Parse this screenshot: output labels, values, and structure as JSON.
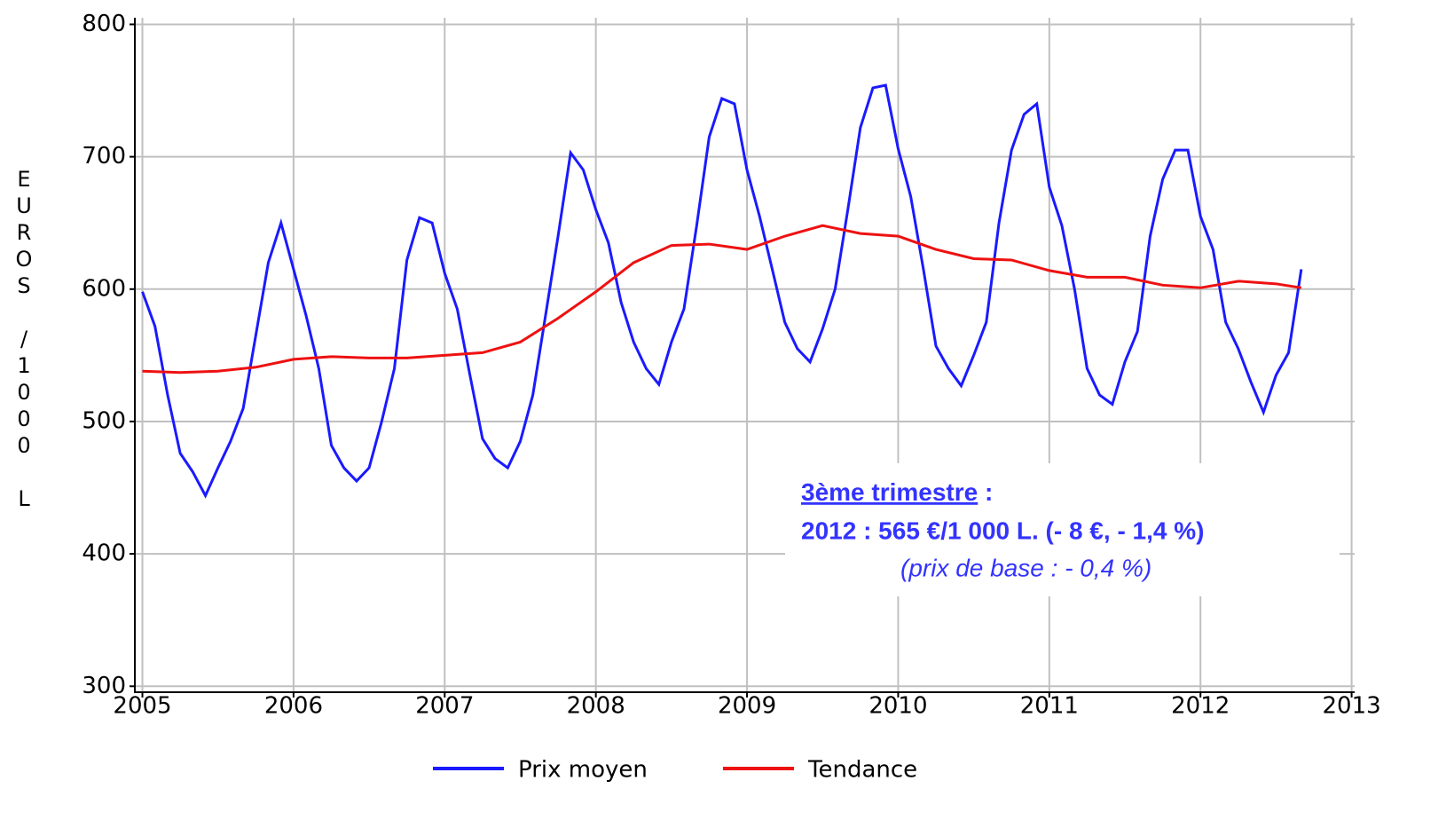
{
  "chart_data": {
    "type": "line",
    "y_label": "EUROS /1000 L",
    "xlim": [
      2004.95,
      2013.02
    ],
    "ylim": [
      295.5,
      805
    ],
    "xticks": [
      2005,
      2006,
      2007,
      2008,
      2009,
      2010,
      2011,
      2012,
      2013
    ],
    "yticks": [
      300,
      400,
      500,
      600,
      700,
      800
    ],
    "grid": true,
    "legend": "bottom",
    "annotation": {
      "heading": "3ème trimestre",
      "heading_suffix": " :",
      "line1": "2012 : 565 €/1 000 L. (- 8 €, - 1,4 %)",
      "line2": "(prix de base : - 0,4 %)",
      "color": "#3333ff"
    },
    "series": [
      {
        "name": "Prix moyen",
        "color": "#1a1aff",
        "x": [
          2005,
          2005.083,
          2005.167,
          2005.25,
          2005.333,
          2005.417,
          2005.5,
          2005.583,
          2005.667,
          2005.75,
          2005.833,
          2005.917,
          2006,
          2006.083,
          2006.167,
          2006.25,
          2006.333,
          2006.417,
          2006.5,
          2006.583,
          2006.667,
          2006.75,
          2006.833,
          2006.917,
          2007,
          2007.083,
          2007.167,
          2007.25,
          2007.333,
          2007.417,
          2007.5,
          2007.583,
          2007.667,
          2007.75,
          2007.833,
          2007.917,
          2008,
          2008.083,
          2008.167,
          2008.25,
          2008.333,
          2008.417,
          2008.5,
          2008.583,
          2008.667,
          2008.75,
          2008.833,
          2008.917,
          2009,
          2009.083,
          2009.167,
          2009.25,
          2009.333,
          2009.417,
          2009.5,
          2009.583,
          2009.667,
          2009.75,
          2009.833,
          2009.917,
          2010,
          2010.083,
          2010.167,
          2010.25,
          2010.333,
          2010.417,
          2010.5,
          2010.583,
          2010.667,
          2010.75,
          2010.833,
          2010.917,
          2011,
          2011.083,
          2011.167,
          2011.25,
          2011.333,
          2011.417,
          2011.5,
          2011.583,
          2011.667,
          2011.75,
          2011.833,
          2011.917,
          2012,
          2012.083,
          2012.167,
          2012.25,
          2012.333,
          2012.417,
          2012.5,
          2012.583,
          2012.667
        ],
        "values": [
          598,
          572,
          520,
          476,
          462,
          444,
          465,
          485,
          510,
          565,
          620,
          650,
          615,
          580,
          540,
          482,
          465,
          455,
          465,
          500,
          540,
          622,
          654,
          650,
          612,
          585,
          535,
          487,
          472,
          465,
          485,
          520,
          580,
          640,
          703,
          690,
          660,
          635,
          590,
          560,
          540,
          528,
          560,
          585,
          648,
          715,
          744,
          740,
          690,
          655,
          615,
          575,
          555,
          545,
          570,
          600,
          660,
          722,
          752,
          754,
          706,
          670,
          615,
          557,
          540,
          527,
          550,
          575,
          650,
          705,
          732,
          740,
          677,
          648,
          600,
          540,
          520,
          513,
          545,
          568,
          640,
          683,
          705,
          705,
          655,
          630,
          575,
          555,
          530,
          507,
          535,
          552,
          615
        ]
      },
      {
        "name": "Tendance",
        "color": "#ee1111",
        "x": [
          2005,
          2005.25,
          2005.5,
          2005.75,
          2006,
          2006.25,
          2006.5,
          2006.75,
          2007,
          2007.25,
          2007.5,
          2007.75,
          2008,
          2008.25,
          2008.5,
          2008.75,
          2009,
          2009.25,
          2009.5,
          2009.75,
          2010,
          2010.25,
          2010.5,
          2010.75,
          2011,
          2011.25,
          2011.5,
          2011.75,
          2012,
          2012.25,
          2012.5,
          2012.667
        ],
        "values": [
          538,
          537,
          538,
          541,
          547,
          549,
          548,
          548,
          550,
          552,
          560,
          578,
          598,
          620,
          633,
          634,
          630,
          640,
          648,
          642,
          640,
          630,
          623,
          622,
          614,
          609,
          609,
          603,
          601,
          606,
          604,
          601
        ]
      }
    ]
  }
}
